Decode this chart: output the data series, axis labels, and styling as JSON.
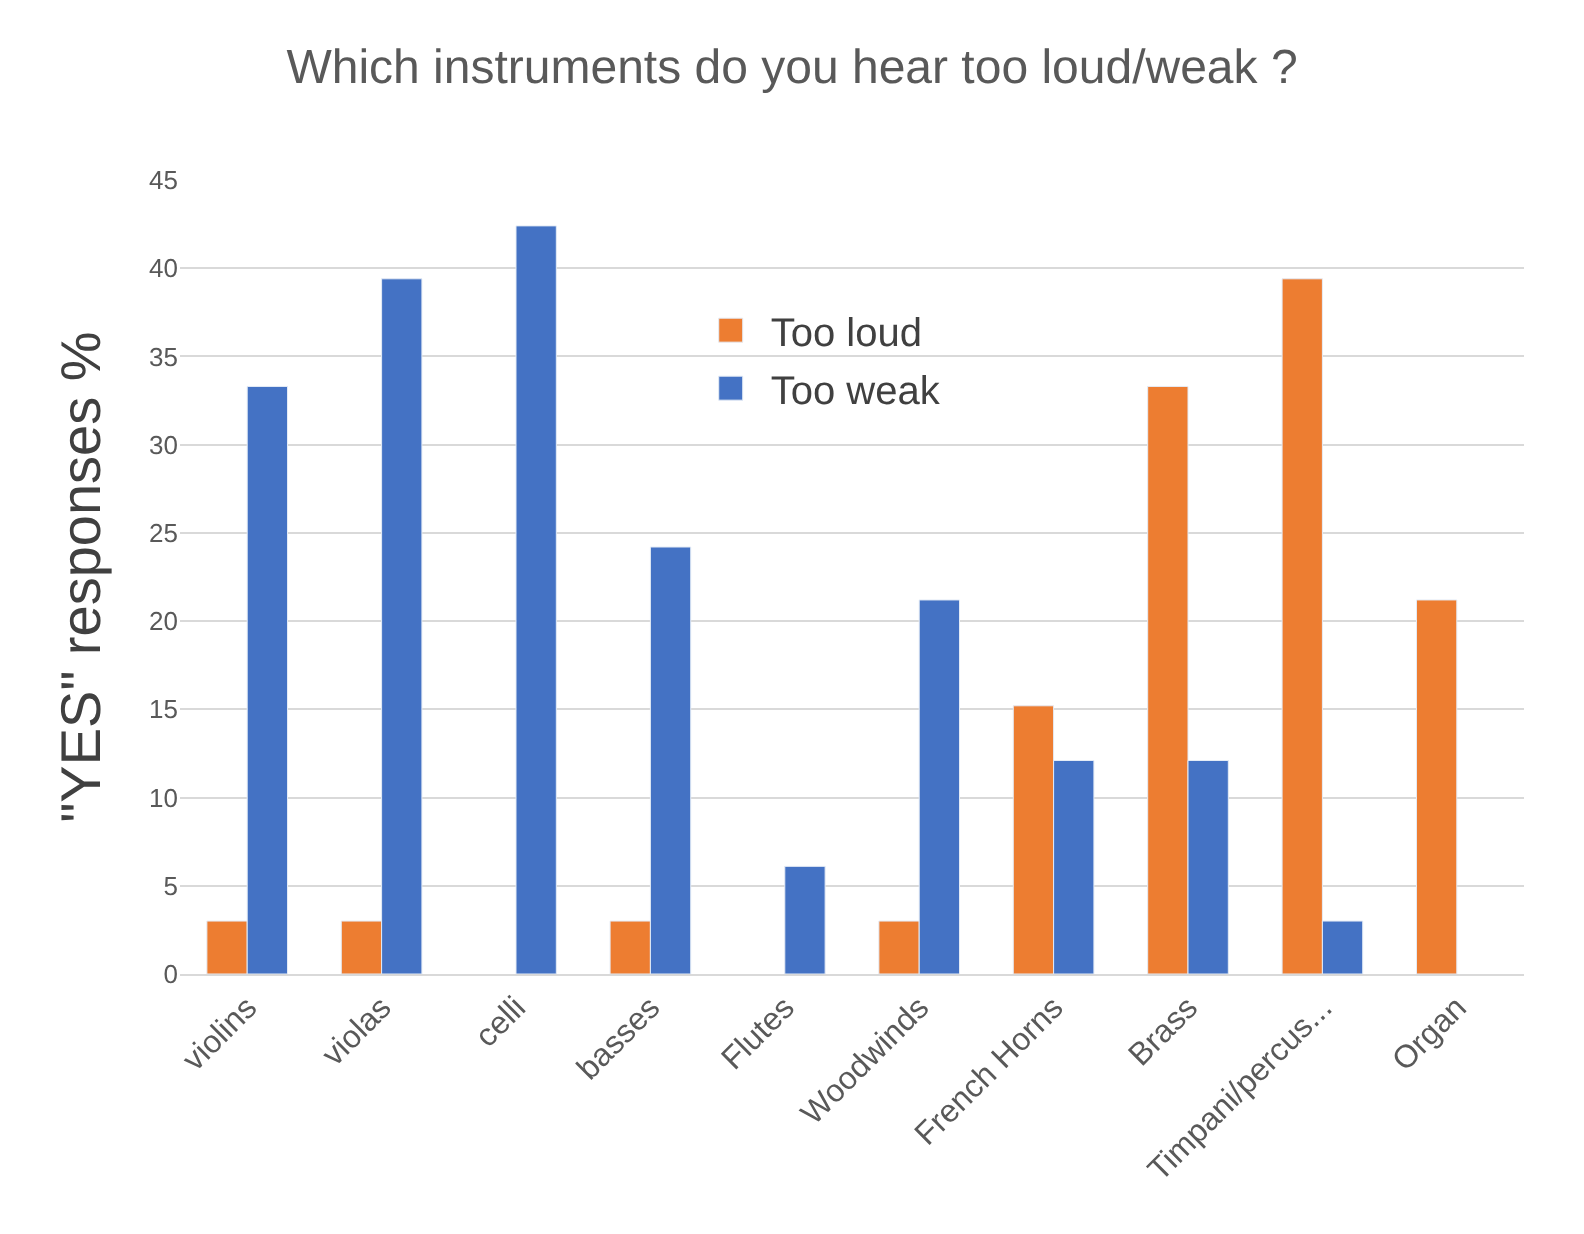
{
  "chart_data": {
    "type": "bar",
    "title": "Which instruments do you hear too loud/weak ?",
    "ylabel": "\"YES\" responses %",
    "categories": [
      "violins",
      "violas",
      "celli",
      "basses",
      "Flutes",
      "Woodwinds",
      "French Horns",
      "Brass",
      "Timpani/percus...",
      "Organ"
    ],
    "series": [
      {
        "name": "Too loud",
        "color": "#ed7d31",
        "values": [
          3,
          3,
          null,
          3,
          null,
          3,
          15.2,
          33.3,
          39.4,
          21.2
        ]
      },
      {
        "name": "Too weak",
        "color": "#4472c4",
        "values": [
          33.3,
          39.4,
          42.4,
          24.2,
          6.1,
          21.2,
          12.1,
          12.1,
          3,
          null
        ]
      }
    ],
    "ylim": [
      0,
      45
    ],
    "yticks": [
      0,
      5,
      10,
      15,
      20,
      25,
      30,
      35,
      40,
      45
    ],
    "grid": "y",
    "legend": "top"
  }
}
